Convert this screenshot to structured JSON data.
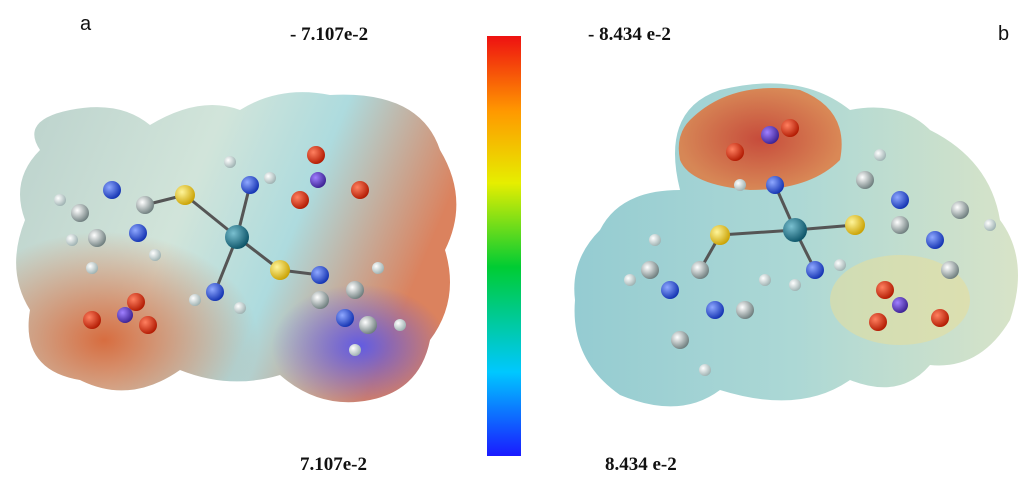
{
  "panels": [
    {
      "label": "a",
      "top_label": "- 7.107e-2",
      "bottom_label": "7.107e-2"
    },
    {
      "label": "b",
      "top_label": "- 8.434 e-2",
      "bottom_label": "8.434 e-2"
    }
  ]
}
